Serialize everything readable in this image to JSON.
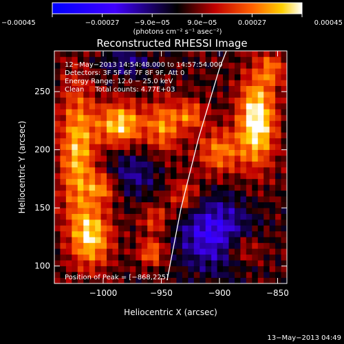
{
  "chart_data": {
    "type": "heatmap",
    "title": "Reconstructed RHESSI Image",
    "xlabel": "Heliocentric X (arcsec)",
    "ylabel": "Heliocentric Y (arcsec)",
    "xlim": [
      -1042,
      -842
    ],
    "ylim": [
      85,
      285
    ],
    "x_ticks": [
      -1000,
      -950,
      -900,
      -850
    ],
    "x_tick_labels": [
      "−1000",
      "−950",
      "−900",
      "−850"
    ],
    "y_ticks": [
      100,
      150,
      200,
      250
    ],
    "y_tick_labels": [
      "100",
      "150",
      "200",
      "250"
    ],
    "colorbar": {
      "range": [
        -0.00045,
        0.00045
      ],
      "ticks": [
        -0.00045,
        -0.00027,
        -9e-05,
        9e-05,
        0.00027,
        0.00045
      ],
      "tick_labels": [
        "−0.00045",
        "−0.00027",
        "−9.0e−05",
        "9.0e−05",
        "0.00027",
        "0.00045"
      ],
      "unit_label": "(photons cm⁻² s⁻¹ asec⁻²)"
    },
    "annotations": [
      "12−May−2013 14:54:48.000 to 14:57:54.000",
      "Detectors: 3F 5F 6F 7F 8F 9F, Att 0",
      "Energy Range: 12.0 − 25.0 keV",
      "Clean     Total counts: 4.77E+03"
    ],
    "peak_label": "Position of Peak = [−868,225]",
    "peak_position": [
      -868,
      225
    ],
    "limb_arc": [
      [
        -945,
        88
      ],
      [
        -933,
        150
      ],
      [
        -918,
        210
      ],
      [
        -900,
        270
      ],
      [
        -894,
        285
      ]
    ],
    "timestamp": "13−May−2013 04:49",
    "sources": [
      {
        "x": -868,
        "y": 225,
        "sx": 11,
        "sy": 26,
        "amp": 0.00045
      },
      {
        "x": -985,
        "y": 222,
        "sx": 14,
        "sy": 13,
        "amp": 0.00036
      },
      {
        "x": -1022,
        "y": 198,
        "sx": 11,
        "sy": 42,
        "amp": 0.00032
      },
      {
        "x": -1010,
        "y": 125,
        "sx": 12,
        "sy": 18,
        "amp": 0.00034
      },
      {
        "x": -1000,
        "y": 168,
        "sx": 9,
        "sy": 9,
        "amp": 0.00024
      },
      {
        "x": -948,
        "y": 220,
        "sx": 10,
        "sy": 16,
        "amp": 0.00026
      },
      {
        "x": -925,
        "y": 230,
        "sx": 9,
        "sy": 9,
        "amp": 0.00023
      },
      {
        "x": -900,
        "y": 198,
        "sx": 13,
        "sy": 14,
        "amp": 0.00025
      },
      {
        "x": -930,
        "y": 160,
        "sx": 10,
        "sy": 11,
        "amp": 0.0002
      },
      {
        "x": -955,
        "y": 140,
        "sx": 9,
        "sy": 9,
        "amp": 0.00018
      },
      {
        "x": -958,
        "y": 112,
        "sx": 8,
        "sy": 8,
        "amp": 0.00025
      },
      {
        "x": -880,
        "y": 115,
        "sx": 12,
        "sy": 9,
        "amp": 0.00018
      },
      {
        "x": -855,
        "y": 270,
        "sx": 8,
        "sy": 10,
        "amp": 0.0002
      },
      {
        "x": -905,
        "y": 128,
        "sx": 22,
        "sy": 22,
        "amp": -0.00028
      },
      {
        "x": -975,
        "y": 180,
        "sx": 16,
        "sy": 14,
        "amp": -0.00016
      },
      {
        "x": -980,
        "y": 275,
        "sx": 18,
        "sy": 8,
        "amp": -0.00014
      }
    ]
  }
}
